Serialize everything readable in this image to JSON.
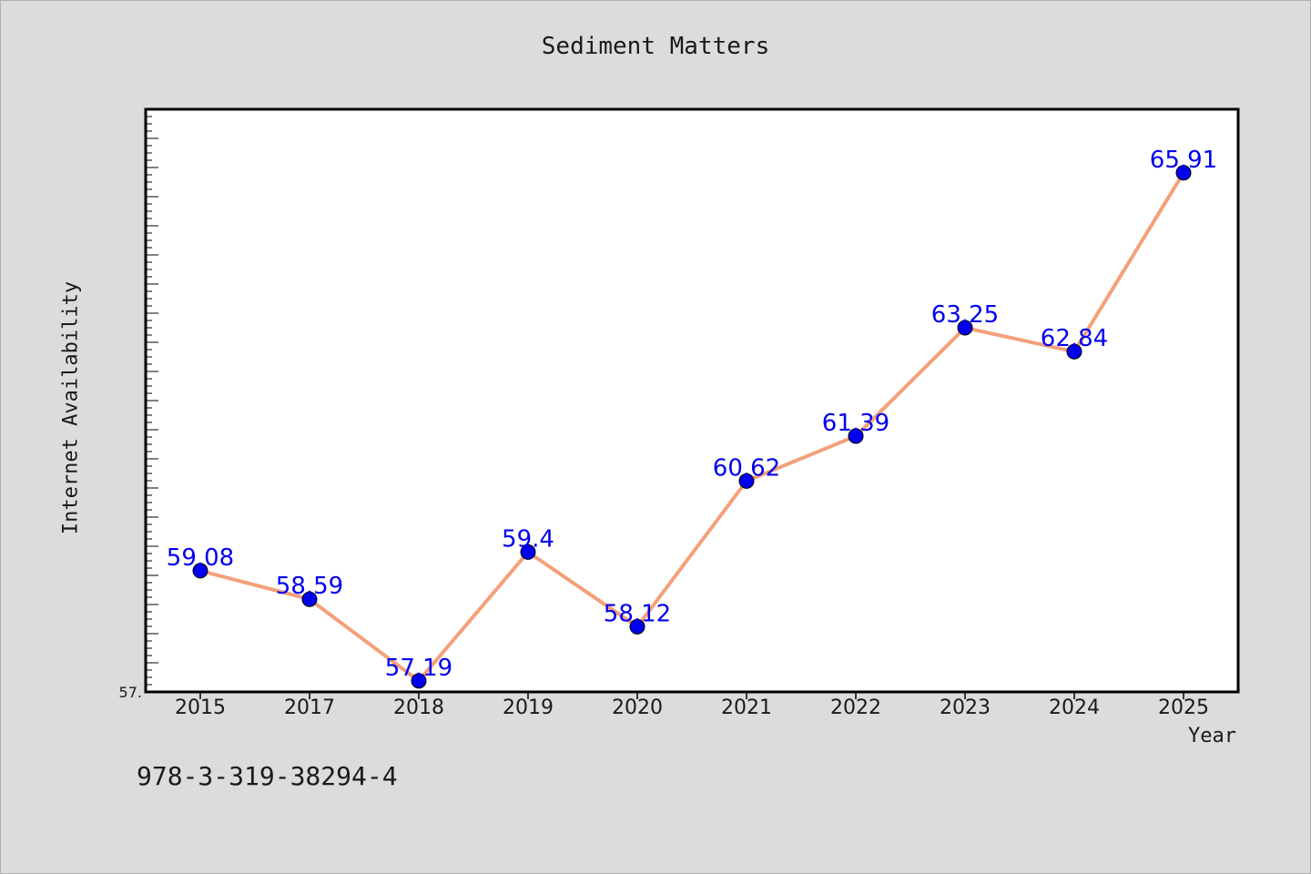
{
  "chart_data": {
    "type": "line",
    "title": "Sediment Matters",
    "xlabel": "Year",
    "ylabel": "Internet Availability",
    "categories": [
      "2015",
      "2017",
      "2018",
      "2019",
      "2020",
      "2021",
      "2022",
      "2023",
      "2024",
      "2025"
    ],
    "series": [
      {
        "values": [
          59.08,
          58.59,
          57.19,
          59.4,
          58.12,
          60.62,
          61.39,
          63.25,
          62.84,
          65.91
        ]
      }
    ],
    "data_labels": [
      "59.08",
      "58.59",
      "57.19",
      "59.4",
      "58.12",
      "60.62",
      "61.39",
      "63.25",
      "62.84",
      "65.91"
    ],
    "ytick_labels": [
      "57."
    ],
    "ylim": [
      57.0,
      67.0
    ],
    "grid": false,
    "colors": {
      "line": "#f4a07a",
      "marker": "#0000ee",
      "label": "#0000ee",
      "plot_bg": "#ffffff",
      "page_bg": "#dcdcdc"
    }
  },
  "footer": {
    "isbn": "978-3-319-38294-4"
  }
}
